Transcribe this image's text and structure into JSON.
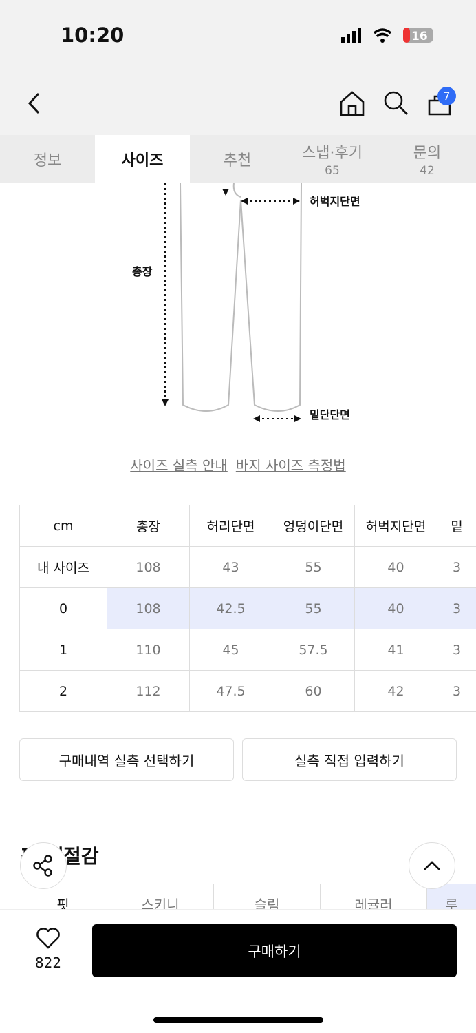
{
  "status": {
    "time": "10:20",
    "battery": "16"
  },
  "header": {
    "cart_count": "7"
  },
  "tabs": [
    {
      "label": "정보"
    },
    {
      "label": "사이즈"
    },
    {
      "label": "추천"
    },
    {
      "label": "스냅·후기",
      "count": "65"
    },
    {
      "label": "문의",
      "count": "42"
    }
  ],
  "diagram": {
    "labels": {
      "thigh": "허벅지단면",
      "length": "총장",
      "hem": "밑단단면"
    }
  },
  "links": {
    "guide": "사이즈 실측 안내",
    "measure": "바지 사이즈 측정법"
  },
  "size_table": {
    "headers": [
      "cm",
      "총장",
      "허리단면",
      "엉덩이단면",
      "허벅지단면",
      "밑"
    ],
    "rows": [
      {
        "label": "내 사이즈",
        "values": [
          "108",
          "43",
          "55",
          "40",
          "3"
        ]
      },
      {
        "label": "0",
        "values": [
          "108",
          "42.5",
          "55",
          "40",
          "3"
        ]
      },
      {
        "label": "1",
        "values": [
          "110",
          "45",
          "57.5",
          "41",
          "3"
        ]
      },
      {
        "label": "2",
        "values": [
          "112",
          "47.5",
          "60",
          "42",
          "3"
        ]
      }
    ]
  },
  "buttons": {
    "history": "구매내역 실측 선택하기",
    "manual": "실측 직접 입력하기",
    "buy": "구매하기"
  },
  "fit_section": {
    "title": "핏·계절감",
    "row_label": "핏",
    "options": [
      "스키니",
      "슬림",
      "레귤러",
      "루"
    ]
  },
  "likes": "822",
  "colors": {
    "highlight": "#e8ecfc",
    "badge": "#2f6cf6"
  }
}
